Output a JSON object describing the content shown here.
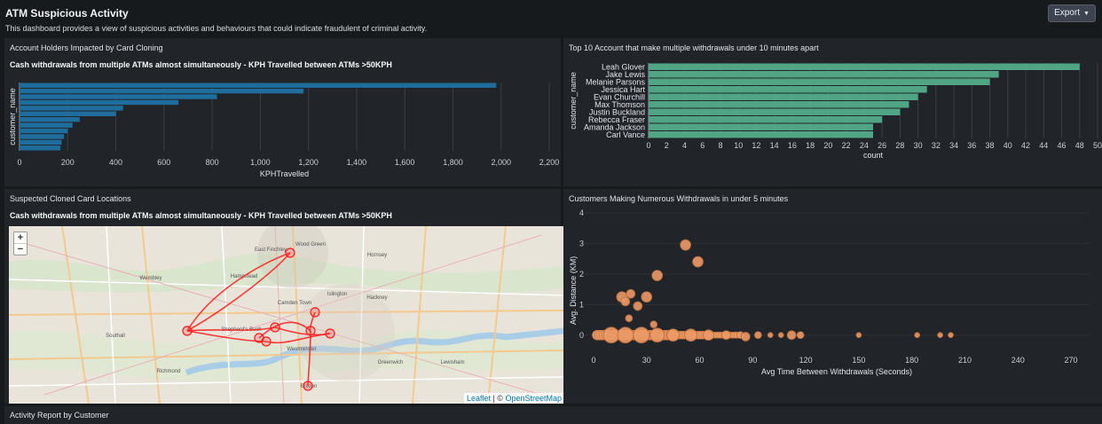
{
  "header": {
    "title": "ATM Suspicious Activity",
    "description": "This dashboard provides a view of suspicious activities and behaviours that could indicate fraudulent of criminal activity.",
    "export_label": "Export"
  },
  "panels": {
    "cloning": {
      "title": "Account Holders Impacted by Card Cloning",
      "subtitle": "Cash withdrawals from multiple ATMs almost simultaneously - KPH Travelled between ATMs >50KPH"
    },
    "top10": {
      "title": "Top 10 Account that make multiple withdrawals under 10 minutes apart"
    },
    "map": {
      "title": "Suspected Cloned Card Locations",
      "subtitle": "Cash withdrawals from multiple ATMs almost simultaneously - KPH Travelled between ATMs >50KPH",
      "zoom_in": "+",
      "zoom_out": "−",
      "attribution_leaflet": "Leaflet",
      "attribution_sep": " | © ",
      "attribution_osm": "OpenStreetMap",
      "labels": [
        "Wood Green",
        "East Finchley",
        "Hornsey",
        "Hampstead",
        "Islington",
        "Hackney",
        "Camden Town",
        "Shepherd's Bush",
        "Westminster",
        "Brixton",
        "Greenwich",
        "Wembley",
        "Southall",
        "Richmond",
        "Lewisham"
      ],
      "bar_color": "#ff1a1a"
    },
    "scatter": {
      "title": "Customers Making Numerous Withdrawals in under 5 minutes"
    },
    "activity": {
      "title": "Activity Report by Customer"
    }
  },
  "chart_data": [
    {
      "type": "bar",
      "orientation": "horizontal",
      "title": "Cash withdrawals from multiple ATMs almost simultaneously - KPH Travelled between ATMs >50KPH",
      "xlabel": "KPHTravelled",
      "ylabel": "customer_name",
      "xlim": [
        0,
        2200
      ],
      "xticks": [
        "0",
        "200",
        "400",
        "600",
        "800",
        "1,000",
        "1,200",
        "1,400",
        "1,600",
        "1,800",
        "2,000",
        "2,200"
      ],
      "values": [
        1980,
        1180,
        820,
        660,
        430,
        400,
        250,
        220,
        200,
        185,
        175,
        170
      ],
      "color": "#1f6d9c",
      "grid": true
    },
    {
      "type": "bar",
      "orientation": "horizontal",
      "xlabel": "count",
      "ylabel": "customer_name",
      "xlim": [
        0,
        50
      ],
      "xticks": [
        "0",
        "2",
        "4",
        "6",
        "8",
        "10",
        "12",
        "14",
        "16",
        "18",
        "20",
        "22",
        "24",
        "26",
        "28",
        "30",
        "32",
        "34",
        "36",
        "38",
        "40",
        "42",
        "44",
        "46",
        "48",
        "50"
      ],
      "categories": [
        "Leah Glover",
        "Jake Lewis",
        "Melanie Parsons",
        "Jessica Hart",
        "Evan Churchill",
        "Max Thomson",
        "Justin Buckland",
        "Rebecca Fraser",
        "Amanda Jackson",
        "Carl Vance"
      ],
      "values": [
        48,
        39,
        38,
        31,
        30,
        29,
        28,
        26,
        25,
        25
      ],
      "color": "#4fa584",
      "grid": true
    },
    {
      "type": "scatter",
      "xlabel": "Avg Time Between Withdrawals (Seconds)",
      "ylabel": "Avg. Distance (KM)",
      "xlim": [
        -5,
        280
      ],
      "ylim": [
        -0.5,
        4
      ],
      "xticks": [
        "0",
        "30",
        "60",
        "90",
        "120",
        "150",
        "180",
        "210",
        "240",
        "270"
      ],
      "yticks": [
        "0",
        "1",
        "2",
        "3",
        "4"
      ],
      "color": "#ec9a66",
      "points": [
        {
          "x": 52,
          "y": 2.95,
          "s": 6
        },
        {
          "x": 59,
          "y": 2.4,
          "s": 6
        },
        {
          "x": 36,
          "y": 1.95,
          "s": 6
        },
        {
          "x": 16,
          "y": 1.25,
          "s": 6
        },
        {
          "x": 21,
          "y": 1.35,
          "s": 5
        },
        {
          "x": 30,
          "y": 1.25,
          "s": 6
        },
        {
          "x": 18,
          "y": 1.1,
          "s": 5
        },
        {
          "x": 25,
          "y": 0.95,
          "s": 5
        },
        {
          "x": 20,
          "y": 0.55,
          "s": 4
        },
        {
          "x": 34,
          "y": 0.35,
          "s": 4
        },
        {
          "x": 10,
          "y": 0,
          "s": 9
        },
        {
          "x": 18,
          "y": 0,
          "s": 9
        },
        {
          "x": 27,
          "y": 0,
          "s": 9
        },
        {
          "x": 36,
          "y": 0,
          "s": 8
        },
        {
          "x": 45,
          "y": 0,
          "s": 7
        },
        {
          "x": 55,
          "y": 0,
          "s": 7
        },
        {
          "x": 65,
          "y": 0,
          "s": 6
        },
        {
          "x": 75,
          "y": 0,
          "s": 5
        },
        {
          "x": 83,
          "y": 0,
          "s": 4
        },
        {
          "x": 86,
          "y": -0.05,
          "s": 5
        },
        {
          "x": 93,
          "y": 0,
          "s": 4
        },
        {
          "x": 100,
          "y": 0,
          "s": 3
        },
        {
          "x": 106,
          "y": 0,
          "s": 3
        },
        {
          "x": 112,
          "y": 0,
          "s": 5
        },
        {
          "x": 117,
          "y": 0,
          "s": 4
        },
        {
          "x": 150,
          "y": 0,
          "s": 3
        },
        {
          "x": 183,
          "y": 0,
          "s": 3
        },
        {
          "x": 196,
          "y": 0,
          "s": 3
        },
        {
          "x": 202,
          "y": 0,
          "s": 3
        }
      ]
    }
  ]
}
